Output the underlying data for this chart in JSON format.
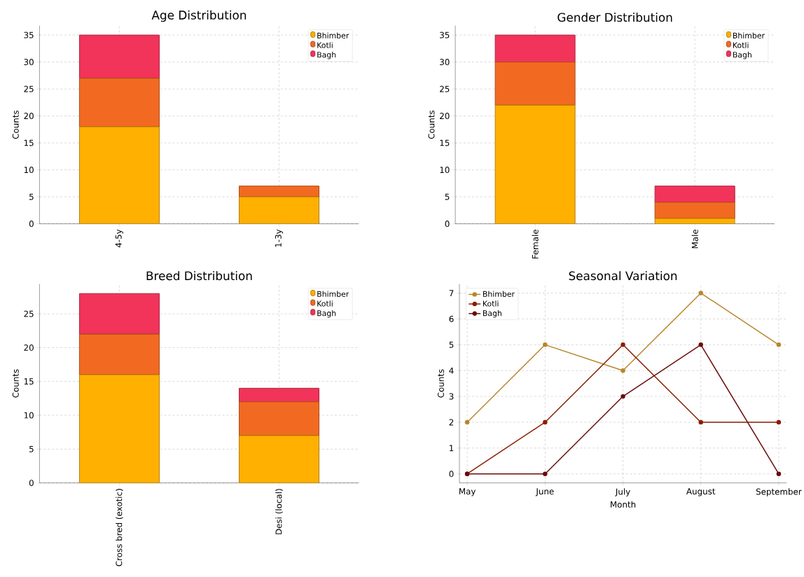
{
  "chart_data": [
    {
      "type": "bar",
      "title": "Age Distribution",
      "ylabel": "Counts",
      "categories": [
        "4-5y",
        "1-3y"
      ],
      "stacked": true,
      "ylim": [
        0,
        36.75
      ],
      "yticks": [
        0,
        5,
        10,
        15,
        20,
        25,
        30,
        35
      ],
      "grid": true,
      "legend": "top right",
      "series": [
        {
          "name": "Bhimber",
          "color": "#ffb000",
          "values": [
            18,
            5
          ]
        },
        {
          "name": "Kotli",
          "color": "#f26a22",
          "values": [
            9,
            2
          ]
        },
        {
          "name": "Bagh",
          "color": "#f2335a",
          "values": [
            8,
            0
          ]
        }
      ]
    },
    {
      "type": "bar",
      "title": "Gender Distribution",
      "ylabel": "Counts",
      "categories": [
        "Female",
        "Male"
      ],
      "stacked": true,
      "ylim": [
        0,
        36.75
      ],
      "yticks": [
        0,
        5,
        10,
        15,
        20,
        25,
        30,
        35
      ],
      "grid": true,
      "legend": "top right",
      "series": [
        {
          "name": "Bhimber",
          "color": "#ffb000",
          "values": [
            22,
            1
          ]
        },
        {
          "name": "Kotli",
          "color": "#f26a22",
          "values": [
            8,
            3
          ]
        },
        {
          "name": "Bagh",
          "color": "#f2335a",
          "values": [
            5,
            3
          ]
        }
      ]
    },
    {
      "type": "bar",
      "title": "Breed Distribution",
      "ylabel": "Counts",
      "categories": [
        "Cross bred (exotic)",
        "Desi (local)"
      ],
      "stacked": true,
      "ylim": [
        0,
        29.4
      ],
      "yticks": [
        0,
        5,
        10,
        15,
        20,
        25
      ],
      "grid": true,
      "legend": "top right",
      "series": [
        {
          "name": "Bhimber",
          "color": "#ffb000",
          "values": [
            16,
            7
          ]
        },
        {
          "name": "Kotli",
          "color": "#f26a22",
          "values": [
            6,
            5
          ]
        },
        {
          "name": "Bagh",
          "color": "#f2335a",
          "values": [
            6,
            2
          ]
        }
      ]
    },
    {
      "type": "line",
      "title": "Seasonal Variation",
      "xlabel": "Month",
      "ylabel": "Counts",
      "categories": [
        "May",
        "June",
        "July",
        "August",
        "September"
      ],
      "ylim": [
        -0.35,
        7.35
      ],
      "yticks": [
        0,
        1,
        2,
        3,
        4,
        5,
        6,
        7
      ],
      "grid": true,
      "legend": "top left",
      "marker": "circle",
      "series": [
        {
          "name": "Bhimber",
          "color": "#b8862b",
          "values": [
            2,
            5,
            4,
            7,
            5
          ]
        },
        {
          "name": "Kotli",
          "color": "#8b1e00",
          "values": [
            0,
            2,
            5,
            2,
            2
          ]
        },
        {
          "name": "Bagh",
          "color": "#6a0c0c",
          "values": [
            0,
            0,
            3,
            5,
            0
          ]
        }
      ]
    }
  ]
}
